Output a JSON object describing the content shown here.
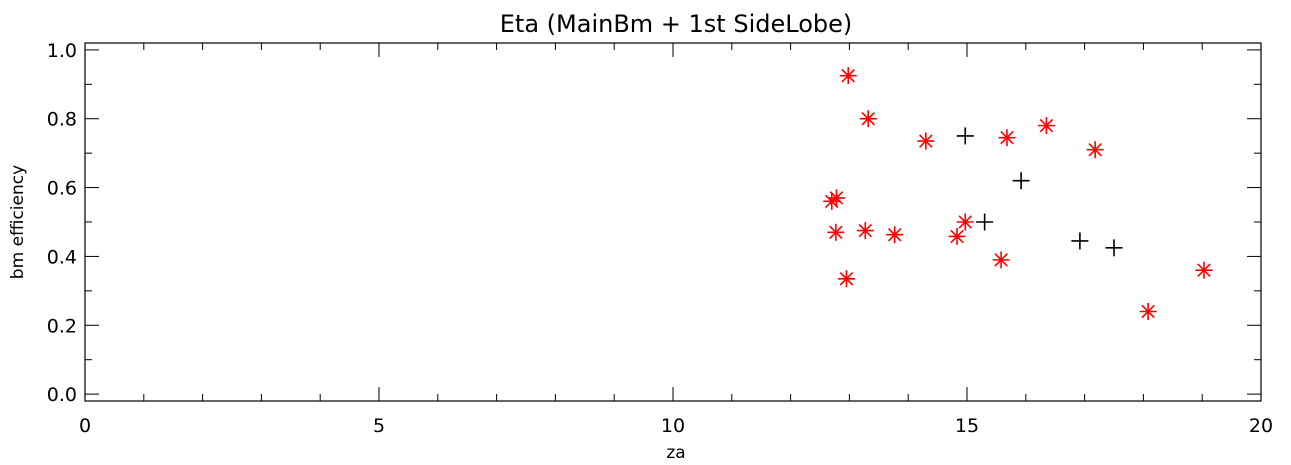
{
  "chart_data": {
    "type": "scatter",
    "title": "Eta (MainBm + 1st SideLobe)",
    "xlabel": "za",
    "ylabel": "bm efficiency",
    "xlim": [
      0,
      20
    ],
    "ylim": [
      -0.02,
      1.02
    ],
    "x_ticks": [
      "0",
      "5",
      "10",
      "15",
      "20"
    ],
    "y_ticks": [
      "0.0",
      "0.2",
      "0.4",
      "0.6",
      "0.8",
      "1.0"
    ],
    "grid": false,
    "series": [
      {
        "marker": "asterisk",
        "color": "#ff0000",
        "points": [
          [
            12.98,
            0.925
          ],
          [
            13.32,
            0.8
          ],
          [
            14.3,
            0.735
          ],
          [
            15.68,
            0.745
          ],
          [
            16.35,
            0.78
          ],
          [
            17.18,
            0.71
          ],
          [
            12.7,
            0.56
          ],
          [
            12.78,
            0.57
          ],
          [
            12.77,
            0.47
          ],
          [
            13.27,
            0.475
          ],
          [
            13.77,
            0.463
          ],
          [
            14.83,
            0.458
          ],
          [
            14.97,
            0.5
          ],
          [
            12.95,
            0.335
          ],
          [
            15.58,
            0.39
          ],
          [
            18.08,
            0.24
          ],
          [
            19.03,
            0.36
          ]
        ]
      },
      {
        "marker": "plus",
        "color": "#000000",
        "points": [
          [
            14.97,
            0.75
          ],
          [
            15.92,
            0.62
          ],
          [
            15.3,
            0.5
          ],
          [
            16.92,
            0.445
          ],
          [
            17.5,
            0.425
          ]
        ]
      }
    ]
  }
}
